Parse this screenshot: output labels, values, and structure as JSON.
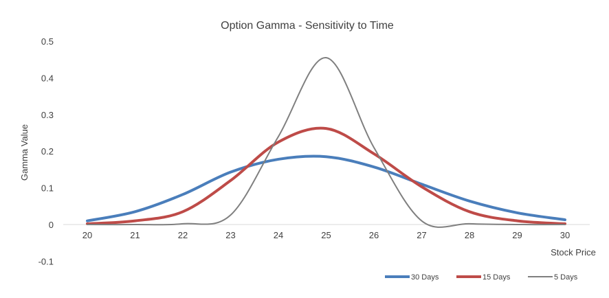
{
  "chart_data": {
    "type": "line",
    "title": "Option Gamma - Sensitivity to Time",
    "xlabel": "Stock Price",
    "ylabel": "Gamma Value",
    "xlim": [
      20,
      30
    ],
    "ylim": [
      -0.1,
      0.5
    ],
    "x_ticks": [
      "20",
      "21",
      "22",
      "23",
      "24",
      "25",
      "26",
      "27",
      "28",
      "29",
      "30"
    ],
    "y_ticks": [
      "0.5",
      "0.4",
      "0.3",
      "0.2",
      "0.1",
      "0",
      "-0.1"
    ],
    "grid": false,
    "legend_position": "bottom-right",
    "smooth": true,
    "x": [
      20,
      21,
      22,
      23,
      24,
      25,
      26,
      27,
      28,
      29,
      30
    ],
    "series": [
      {
        "name": "30 Days",
        "color": "#4a7ebb",
        "values": [
          0.01,
          0.035,
          0.082,
          0.143,
          0.178,
          0.185,
          0.157,
          0.11,
          0.064,
          0.032,
          0.013
        ]
      },
      {
        "name": "15 Days",
        "color": "#be4b48",
        "values": [
          0.002,
          0.01,
          0.035,
          0.12,
          0.225,
          0.262,
          0.193,
          0.103,
          0.035,
          0.01,
          0.002
        ]
      },
      {
        "name": "5 Days",
        "color": "#7f7f7f",
        "values": [
          0,
          0,
          0.002,
          0.026,
          0.24,
          0.455,
          0.21,
          0.01,
          0.002,
          0,
          0
        ]
      }
    ]
  }
}
